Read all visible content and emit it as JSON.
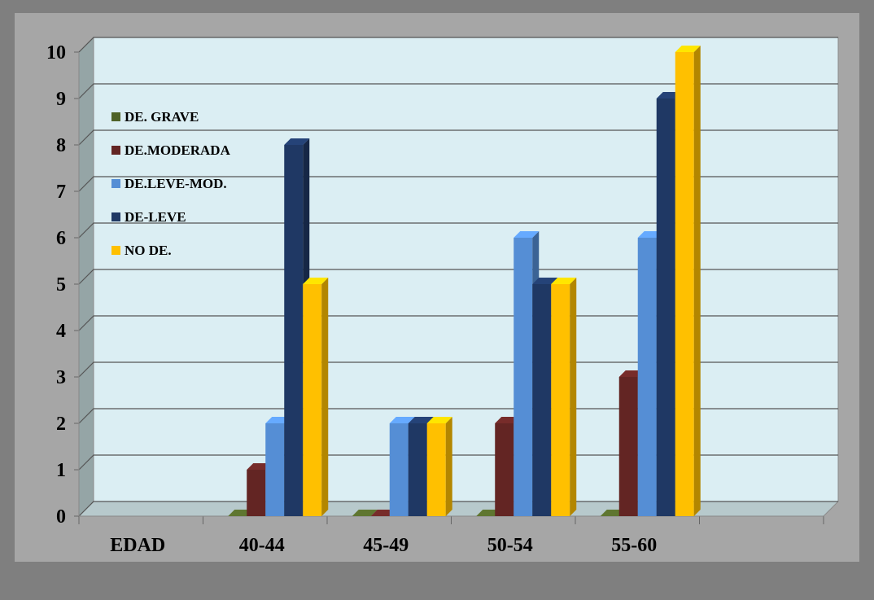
{
  "chart_data": {
    "type": "bar",
    "categories": [
      "EDAD",
      "40-44",
      "45-49",
      "50-54",
      "55-60",
      ""
    ],
    "series": [
      {
        "name": "DE. GRAVE",
        "color": "#4f6228",
        "values": [
          null,
          0,
          0,
          0,
          0,
          null
        ]
      },
      {
        "name": "DE.MODERADA",
        "color": "#632523",
        "values": [
          null,
          1,
          0,
          2,
          3,
          null
        ]
      },
      {
        "name": "DE.LEVE-MOD.",
        "color": "#558ed5",
        "values": [
          null,
          2,
          2,
          6,
          6,
          null
        ]
      },
      {
        "name": "DE-LEVE",
        "color": "#1f3864",
        "values": [
          null,
          8,
          2,
          5,
          9,
          null
        ]
      },
      {
        "name": "NO DE.",
        "color": "#ffc000",
        "values": [
          null,
          5,
          2,
          5,
          10,
          null
        ]
      }
    ],
    "y_ticks": [
      "0",
      "1",
      "2",
      "3",
      "4",
      "5",
      "6",
      "7",
      "8",
      "9",
      "10"
    ],
    "ylim": [
      0,
      10
    ],
    "title": "",
    "xlabel": "",
    "ylabel": "",
    "grid": true,
    "legend_position": "top-left (inside plot)",
    "colors": {
      "plot_background": "#dbeef3",
      "frame": "#a6a6a6",
      "page_background": "#7f7f7f"
    }
  }
}
